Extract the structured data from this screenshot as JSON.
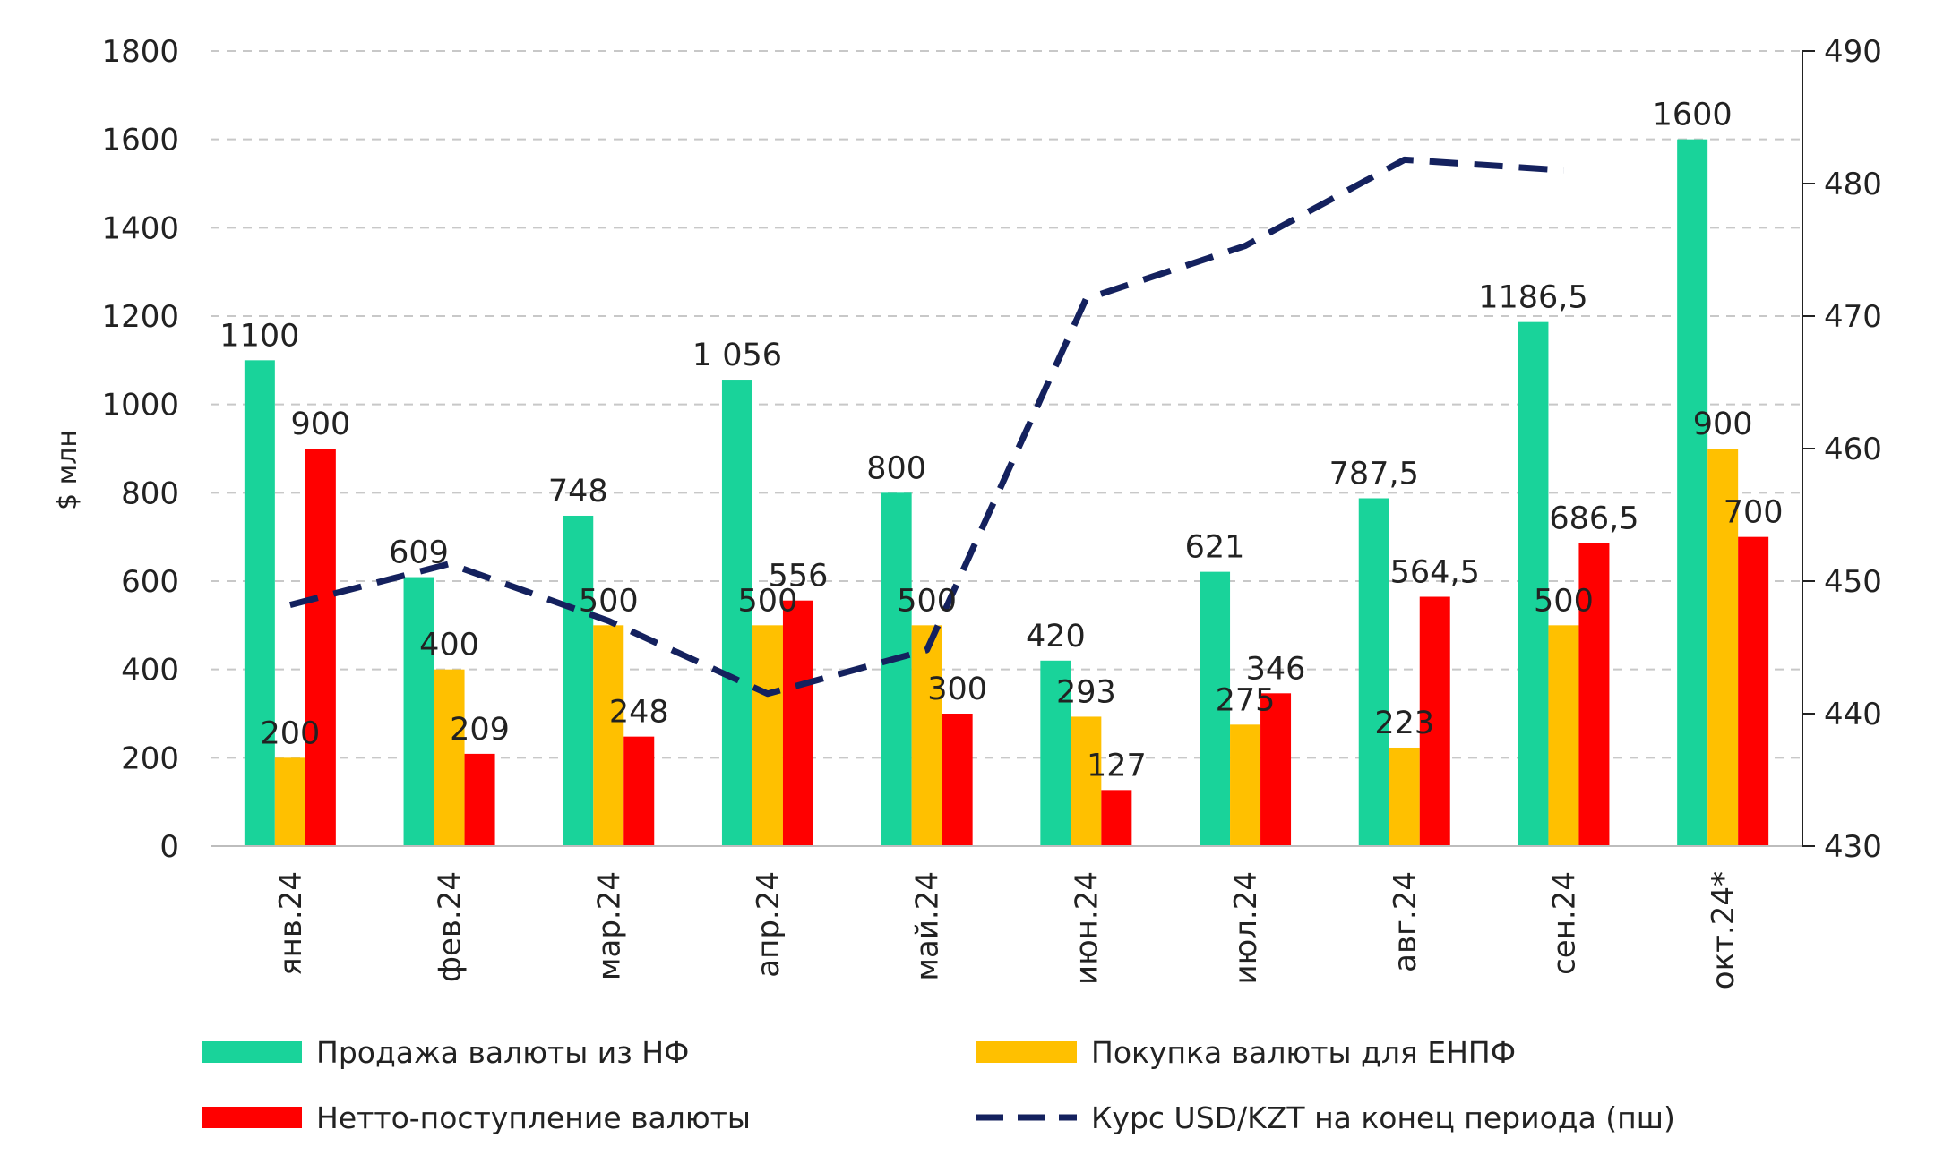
{
  "chart_data": {
    "type": "bar",
    "categories": [
      "янв.24",
      "фев.24",
      "мар.24",
      "апр.24",
      "май.24",
      "июн.24",
      "июл.24",
      "авг.24",
      "сен.24",
      "окт.24*"
    ],
    "ylabel": "$ млн",
    "ylim": [
      0,
      1800
    ],
    "yticks": [
      0,
      200,
      400,
      600,
      800,
      1000,
      1200,
      1400,
      1600,
      1800
    ],
    "y2lim": [
      430,
      490
    ],
    "y2ticks": [
      430,
      440,
      450,
      460,
      470,
      480,
      490
    ],
    "grid": "horizontal dashed",
    "legend_position": "bottom",
    "series": [
      {
        "name": "Продажа валюты из НФ",
        "type": "bar",
        "color": "#19d39a",
        "values": [
          1100,
          609,
          748,
          1056,
          800,
          420,
          621,
          787.5,
          1186.5,
          1600
        ],
        "labels": [
          "1100",
          "609",
          "748",
          "1 056",
          "800",
          "420",
          "621",
          "787,5",
          "1186,5",
          "1600"
        ]
      },
      {
        "name": "Покупка валюты для ЕНПФ",
        "type": "bar",
        "color": "#ffc000",
        "values": [
          200,
          400,
          500,
          500,
          500,
          293,
          275,
          223,
          500,
          900
        ],
        "labels": [
          "200",
          "400",
          "500",
          "500",
          "500",
          "293",
          "275",
          "223",
          "500",
          "900"
        ]
      },
      {
        "name": "Нетто-поступление валюты",
        "type": "bar",
        "color": "#ff0000",
        "values": [
          900,
          209,
          248,
          556,
          300,
          127,
          346,
          564.5,
          686.5,
          700
        ],
        "labels": [
          "900",
          "209",
          "248",
          "556",
          "300",
          "127",
          "346",
          "564,5",
          "686,5",
          "700"
        ]
      },
      {
        "name": "Курс USD/KZT на конец периода (пш)",
        "type": "line",
        "axis": "right",
        "color": "#14215e",
        "dash": "dashed",
        "values": [
          448.2,
          451.3,
          447.0,
          441.5,
          444.8,
          471.3,
          475.3,
          481.8,
          481.0,
          null
        ]
      }
    ]
  }
}
